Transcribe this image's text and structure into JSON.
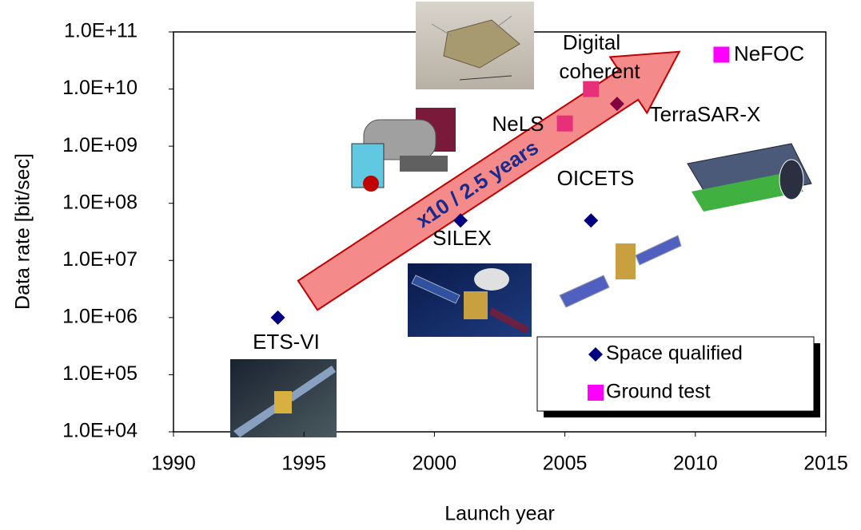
{
  "chart_data": {
    "type": "scatter",
    "x_label": "Launch year",
    "y_label": "Data rate [bit/sec]",
    "xlim": [
      1990,
      2015
    ],
    "xticks": [
      1990,
      1995,
      2000,
      2005,
      2010,
      2015
    ],
    "ylim": [
      10000,
      100000000000
    ],
    "yscale": "log",
    "yticks": [
      {
        "value": 10000,
        "label": "1.0E+04"
      },
      {
        "value": 100000,
        "label": "1.0E+05"
      },
      {
        "value": 1000000,
        "label": "1.0E+06"
      },
      {
        "value": 10000000,
        "label": "1.0E+07"
      },
      {
        "value": 100000000,
        "label": "1.0E+08"
      },
      {
        "value": 1000000000,
        "label": "1.0E+09"
      },
      {
        "value": 10000000000,
        "label": "1.0E+10"
      },
      {
        "value": 100000000000,
        "label": "1.0E+11"
      }
    ],
    "grid": false,
    "legend": "lower right",
    "series": [
      {
        "name": "Space qualified",
        "marker": "diamond",
        "color": "#000080",
        "colors": [
          "#000080",
          "#000080",
          "#000080",
          "#800040"
        ],
        "x": [
          1994,
          2001,
          2006,
          2007
        ],
        "values": [
          1000000,
          50000000,
          50000000,
          5500000000
        ]
      },
      {
        "name": "Ground test",
        "marker": "square",
        "color": "#ff00ff",
        "colors": [
          "#e8307a",
          "#e8307a",
          "#ff00ff"
        ],
        "x": [
          2005,
          2006,
          2011
        ],
        "values": [
          2500000000,
          10000000000,
          40000000000
        ]
      }
    ],
    "annotations": [
      "ETS-VI",
      "SILEX",
      "OICETS",
      "TerraSAR-X",
      "NeLS",
      "Digital",
      "coherent",
      "NeFOC",
      "x10 / 2.5 years"
    ]
  }
}
